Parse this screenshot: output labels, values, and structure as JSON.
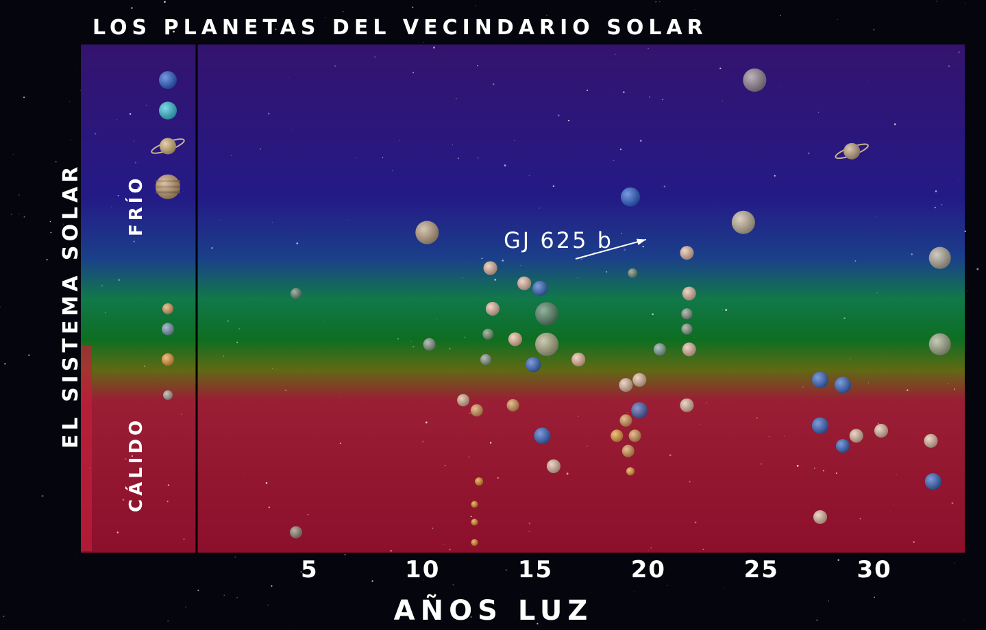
{
  "chart_data": {
    "type": "scatter",
    "title": "LOS PLANETAS DEL VECINDARIO SOLAR",
    "xlabel": "AÑOS LUZ",
    "side_label": "EL SISTEMA SOLAR",
    "zone_cold": "FRÍO",
    "zone_warm": "CÁLIDO",
    "xlim": [
      0,
      34
    ],
    "x_ticks": [
      5,
      10,
      15,
      20,
      25,
      30
    ],
    "annotation": {
      "label": "GJ 625 b",
      "x": 20.5,
      "y": 0.6
    },
    "colors": {
      "cold": "#2a1a78",
      "temperate": "#0f7a2a",
      "warm": "#a0122e"
    },
    "solar_system": [
      {
        "name": "neptune",
        "y": 0.93,
        "color": "#2e63d6",
        "r": 13
      },
      {
        "name": "uranus",
        "y": 0.87,
        "color": "#3ac7e0",
        "r": 13
      },
      {
        "name": "saturn",
        "y": 0.8,
        "color": "#d8b87c",
        "r": 12,
        "ring": true
      },
      {
        "name": "jupiter",
        "y": 0.72,
        "color": "#c9a374",
        "r": 18,
        "banded": true
      },
      {
        "name": "mars",
        "y": 0.48,
        "color": "#e3a868",
        "r": 8
      },
      {
        "name": "earth",
        "y": 0.44,
        "color": "#7f9eb6",
        "r": 9
      },
      {
        "name": "venus",
        "y": 0.38,
        "color": "#f0a040",
        "r": 9
      },
      {
        "name": "mercury",
        "y": 0.31,
        "color": "#b4a9a2",
        "r": 7
      }
    ],
    "points": [
      {
        "x": 4.4,
        "y": 0.51,
        "color": "#6f8f7a",
        "r": 8
      },
      {
        "x": 4.4,
        "y": 0.04,
        "color": "#9a8878",
        "r": 9
      },
      {
        "x": 10.2,
        "y": 0.63,
        "color": "#c2a888",
        "r": 17
      },
      {
        "x": 10.3,
        "y": 0.41,
        "color": "#8fa090",
        "r": 9
      },
      {
        "x": 11.8,
        "y": 0.3,
        "color": "#e0b898",
        "r": 9
      },
      {
        "x": 12.5,
        "y": 0.14,
        "color": "#e8902a",
        "r": 6
      },
      {
        "x": 12.3,
        "y": 0.095,
        "color": "#e8902a",
        "r": 5
      },
      {
        "x": 12.3,
        "y": 0.06,
        "color": "#e8902a",
        "r": 5
      },
      {
        "x": 12.3,
        "y": 0.02,
        "color": "#e8902a",
        "r": 5
      },
      {
        "x": 12.4,
        "y": 0.28,
        "color": "#e09a5a",
        "r": 9
      },
      {
        "x": 12.8,
        "y": 0.38,
        "color": "#8fa090",
        "r": 8
      },
      {
        "x": 12.9,
        "y": 0.43,
        "color": "#7a9a7a",
        "r": 8
      },
      {
        "x": 13.0,
        "y": 0.56,
        "color": "#e8c0a8",
        "r": 10
      },
      {
        "x": 13.1,
        "y": 0.48,
        "color": "#e8c0a8",
        "r": 10
      },
      {
        "x": 14.1,
        "y": 0.42,
        "color": "#f0c0a0",
        "r": 10
      },
      {
        "x": 14.0,
        "y": 0.29,
        "color": "#e09a5a",
        "r": 9
      },
      {
        "x": 14.5,
        "y": 0.53,
        "color": "#e8c0a8",
        "r": 10
      },
      {
        "x": 14.9,
        "y": 0.37,
        "color": "#3a6ac8",
        "r": 11
      },
      {
        "x": 15.2,
        "y": 0.52,
        "color": "#3a6ac8",
        "r": 11
      },
      {
        "x": 15.5,
        "y": 0.47,
        "color": "#5a8a6a",
        "r": 17
      },
      {
        "x": 15.5,
        "y": 0.41,
        "color": "#b0b088",
        "r": 17
      },
      {
        "x": 15.3,
        "y": 0.23,
        "color": "#3a6ac8",
        "r": 12
      },
      {
        "x": 15.8,
        "y": 0.17,
        "color": "#e8c0a8",
        "r": 10
      },
      {
        "x": 16.9,
        "y": 0.38,
        "color": "#f0c0a0",
        "r": 10
      },
      {
        "x": 19.2,
        "y": 0.7,
        "color": "#2e63d6",
        "r": 14
      },
      {
        "x": 19.3,
        "y": 0.55,
        "color": "#6f8f7a",
        "r": 7
      },
      {
        "x": 19.0,
        "y": 0.33,
        "color": "#e8c0a8",
        "r": 10
      },
      {
        "x": 19.6,
        "y": 0.34,
        "color": "#e8c0a8",
        "r": 10
      },
      {
        "x": 19.0,
        "y": 0.26,
        "color": "#e09a5a",
        "r": 9
      },
      {
        "x": 19.6,
        "y": 0.28,
        "color": "#5060b0",
        "r": 12
      },
      {
        "x": 18.6,
        "y": 0.23,
        "color": "#f0a040",
        "r": 9
      },
      {
        "x": 19.4,
        "y": 0.23,
        "color": "#e09a5a",
        "r": 9
      },
      {
        "x": 19.1,
        "y": 0.2,
        "color": "#e09a5a",
        "r": 9
      },
      {
        "x": 19.2,
        "y": 0.16,
        "color": "#f0a040",
        "r": 6
      },
      {
        "x": 20.5,
        "y": 0.4,
        "color": "#8aa8a0",
        "r": 9
      },
      {
        "x": 21.7,
        "y": 0.59,
        "color": "#e8c0a8",
        "r": 10
      },
      {
        "x": 21.8,
        "y": 0.51,
        "color": "#e8c0a8",
        "r": 10
      },
      {
        "x": 21.7,
        "y": 0.47,
        "color": "#8fa090",
        "r": 8
      },
      {
        "x": 21.7,
        "y": 0.44,
        "color": "#8fa090",
        "r": 8
      },
      {
        "x": 21.8,
        "y": 0.4,
        "color": "#e8c0a8",
        "r": 10
      },
      {
        "x": 21.7,
        "y": 0.29,
        "color": "#e8c0a8",
        "r": 10
      },
      {
        "x": 24.2,
        "y": 0.65,
        "color": "#c8b8a0",
        "r": 17
      },
      {
        "x": 24.7,
        "y": 0.93,
        "color": "#9a8a9a",
        "r": 17
      },
      {
        "x": 27.6,
        "y": 0.34,
        "color": "#3a6ac8",
        "r": 12
      },
      {
        "x": 27.6,
        "y": 0.25,
        "color": "#3a6ac8",
        "r": 12
      },
      {
        "x": 27.6,
        "y": 0.07,
        "color": "#e8c0a8",
        "r": 10
      },
      {
        "x": 28.6,
        "y": 0.33,
        "color": "#3a6ac8",
        "r": 12
      },
      {
        "x": 28.6,
        "y": 0.21,
        "color": "#3a6ac8",
        "r": 10
      },
      {
        "x": 29.0,
        "y": 0.79,
        "color": "#c8a888",
        "r": 12,
        "ring": true
      },
      {
        "x": 29.2,
        "y": 0.23,
        "color": "#e8c0a8",
        "r": 10
      },
      {
        "x": 30.3,
        "y": 0.24,
        "color": "#e8c0a8",
        "r": 10
      },
      {
        "x": 32.9,
        "y": 0.58,
        "color": "#b8b0a0",
        "r": 16
      },
      {
        "x": 32.9,
        "y": 0.41,
        "color": "#a8b090",
        "r": 16
      },
      {
        "x": 32.5,
        "y": 0.22,
        "color": "#e8c0a8",
        "r": 10
      },
      {
        "x": 32.6,
        "y": 0.14,
        "color": "#3a6ac8",
        "r": 12
      }
    ]
  }
}
